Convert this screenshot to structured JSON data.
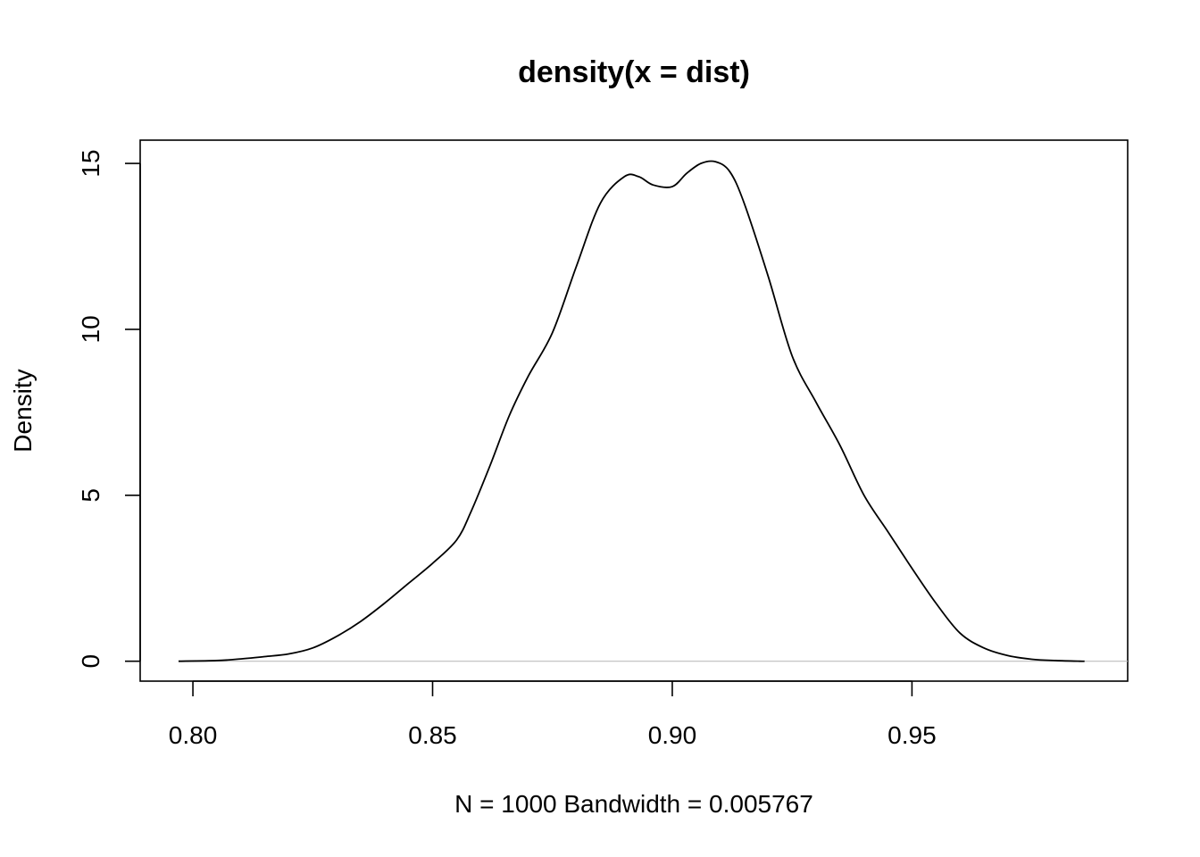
{
  "chart_data": {
    "type": "line",
    "title": "density(x = dist)",
    "xlabel": "N = 1000   Bandwidth = 0.005767",
    "ylabel": "Density",
    "xlim": [
      0.789,
      0.995
    ],
    "ylim": [
      -0.6,
      15.7
    ],
    "x_ticks": [
      0.8,
      0.85,
      0.9,
      0.95
    ],
    "x_tick_labels": [
      "0.80",
      "0.85",
      "0.90",
      "0.95"
    ],
    "y_ticks": [
      0,
      5,
      10,
      15
    ],
    "y_tick_labels": [
      "0",
      "5",
      "10",
      "15"
    ],
    "baseline": 0,
    "baseline_color": "#bebebe",
    "line_color": "#000000",
    "grid": false,
    "legend": "none",
    "series": [
      {
        "x": [
          0.797,
          0.805,
          0.81,
          0.815,
          0.82,
          0.825,
          0.83,
          0.835,
          0.84,
          0.845,
          0.85,
          0.855,
          0.858,
          0.862,
          0.866,
          0.87,
          0.875,
          0.88,
          0.885,
          0.89,
          0.893,
          0.896,
          0.9,
          0.903,
          0.906,
          0.909,
          0.912,
          0.915,
          0.92,
          0.925,
          0.93,
          0.935,
          0.94,
          0.945,
          0.95,
          0.955,
          0.96,
          0.965,
          0.97,
          0.975,
          0.98,
          0.985,
          0.986
        ],
        "y": [
          0,
          0.02,
          0.07,
          0.14,
          0.22,
          0.4,
          0.75,
          1.2,
          1.75,
          2.35,
          2.95,
          3.65,
          4.5,
          5.9,
          7.4,
          8.6,
          9.9,
          11.9,
          13.8,
          14.6,
          14.6,
          14.35,
          14.3,
          14.7,
          15.0,
          15.05,
          14.75,
          13.8,
          11.6,
          9.2,
          7.8,
          6.5,
          5.0,
          3.9,
          2.8,
          1.75,
          0.85,
          0.4,
          0.17,
          0.06,
          0.02,
          0.0,
          0.0
        ]
      }
    ]
  }
}
